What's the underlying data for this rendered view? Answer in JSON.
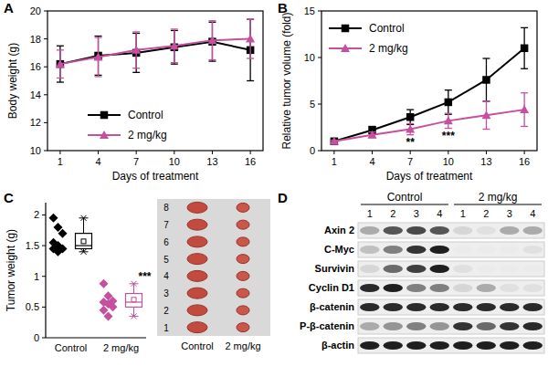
{
  "chart_data": [
    {
      "panel": "A",
      "type": "line",
      "x_label": "Days of treatment",
      "y_label": "Body weight (g)",
      "x": [
        1,
        4,
        7,
        10,
        13,
        16
      ],
      "xlim": [
        0,
        17
      ],
      "xticks": [
        1,
        4,
        7,
        10,
        13,
        16
      ],
      "ylim": [
        10,
        20
      ],
      "yticks": [
        10,
        12,
        14,
        16,
        18,
        20
      ],
      "legend": "lower center",
      "series": [
        {
          "name": "Control",
          "color": "#000000",
          "marker": "square",
          "values": [
            16.2,
            16.8,
            17.0,
            17.4,
            17.8,
            17.2
          ],
          "errors": [
            1.3,
            1.4,
            1.4,
            1.2,
            1.4,
            2.2
          ]
        },
        {
          "name": "2 mg/kg",
          "color": "#c4509e",
          "marker": "triangle",
          "values": [
            16.2,
            16.7,
            17.2,
            17.5,
            17.9,
            18.0
          ],
          "errors": [
            1.0,
            1.4,
            1.3,
            1.2,
            1.4,
            1.4
          ]
        }
      ]
    },
    {
      "panel": "B",
      "type": "line",
      "x_label": "Days of treatment",
      "y_label": "Relative tumor volume (fold)",
      "x": [
        1,
        4,
        7,
        10,
        13,
        16
      ],
      "xlim": [
        0,
        17
      ],
      "xticks": [
        1,
        4,
        7,
        10,
        13,
        16
      ],
      "ylim": [
        0,
        15
      ],
      "yticks": [
        0,
        5,
        10,
        15
      ],
      "legend": "upper left",
      "series": [
        {
          "name": "Control",
          "color": "#000000",
          "marker": "square",
          "values": [
            1,
            2.2,
            3.6,
            5.2,
            7.6,
            11.0
          ],
          "errors": [
            0.2,
            0.4,
            0.8,
            1.3,
            2.3,
            2.2
          ]
        },
        {
          "name": "2 mg/kg",
          "color": "#c4509e",
          "marker": "triangle",
          "values": [
            1,
            1.7,
            2.3,
            3.2,
            3.8,
            4.4
          ],
          "errors": [
            0.1,
            0.3,
            0.6,
            0.8,
            1.5,
            1.8
          ]
        }
      ],
      "annotations": [
        {
          "x": 7,
          "text": "**"
        },
        {
          "x": 10,
          "text": "***"
        }
      ]
    },
    {
      "panel": "C",
      "type": "box",
      "y_label": "Tumor weight (g)",
      "categories": [
        "Control",
        "2 mg/kg"
      ],
      "colors": [
        "#000000",
        "#c4509e"
      ],
      "marker": "diamond",
      "ylim": [
        0,
        2.2
      ],
      "yticks": [
        0,
        0.5,
        1,
        1.5,
        2
      ],
      "points": [
        [
          1.95,
          1.8,
          1.7,
          1.55,
          1.5,
          1.45,
          1.45,
          1.4
        ],
        [
          0.88,
          0.68,
          0.6,
          0.58,
          0.55,
          0.5,
          0.45,
          0.35
        ]
      ],
      "box": [
        {
          "whisker_low": 1.4,
          "q1": 1.45,
          "median": 1.5,
          "q3": 1.7,
          "whisker_high": 1.95,
          "mean": 1.57
        },
        {
          "whisker_low": 0.35,
          "q1": 0.5,
          "median": 0.58,
          "q3": 0.72,
          "whisker_high": 0.88,
          "mean": 0.62
        }
      ],
      "annotations": [
        {
          "category": 1,
          "text": "***"
        }
      ]
    }
  ],
  "tumor_photo": {
    "rows": [
      "1",
      "2",
      "3",
      "4",
      "5",
      "6",
      "7",
      "8"
    ],
    "columns": [
      "Control",
      "2 mg/kg"
    ]
  },
  "western_blot": {
    "panel": "D",
    "groups": [
      "Control",
      "2 mg/kg"
    ],
    "lanes": [
      "1",
      "2",
      "3",
      "4"
    ],
    "proteins": [
      {
        "name": "Axin 2",
        "intensity": [
          0.3,
          0.7,
          0.75,
          0.7,
          0.1,
          0.05,
          0.3,
          0.3
        ]
      },
      {
        "name": "C-Myc",
        "intensity": [
          0.2,
          0.5,
          0.85,
          0.95,
          0,
          0,
          0,
          0.05
        ]
      },
      {
        "name": "Survivin",
        "intensity": [
          0.1,
          0.6,
          0.8,
          0.95,
          0.05,
          0,
          0,
          0
        ]
      },
      {
        "name": "Cyclin D1",
        "intensity": [
          0.9,
          0.95,
          0.5,
          0.5,
          0.1,
          0.3,
          0.05,
          0.05
        ]
      },
      {
        "name": "β-catenin",
        "intensity": [
          0.9,
          0.9,
          0.9,
          0.9,
          0.9,
          0.9,
          0.9,
          0.9
        ]
      },
      {
        "name": "P-β-catenin",
        "intensity": [
          0.3,
          0.4,
          0.5,
          0.4,
          0.85,
          0.6,
          0.85,
          0.9
        ]
      },
      {
        "name": "β-actin",
        "intensity": [
          0.95,
          0.95,
          0.95,
          0.95,
          0.95,
          0.95,
          0.95,
          0.95
        ]
      }
    ]
  }
}
